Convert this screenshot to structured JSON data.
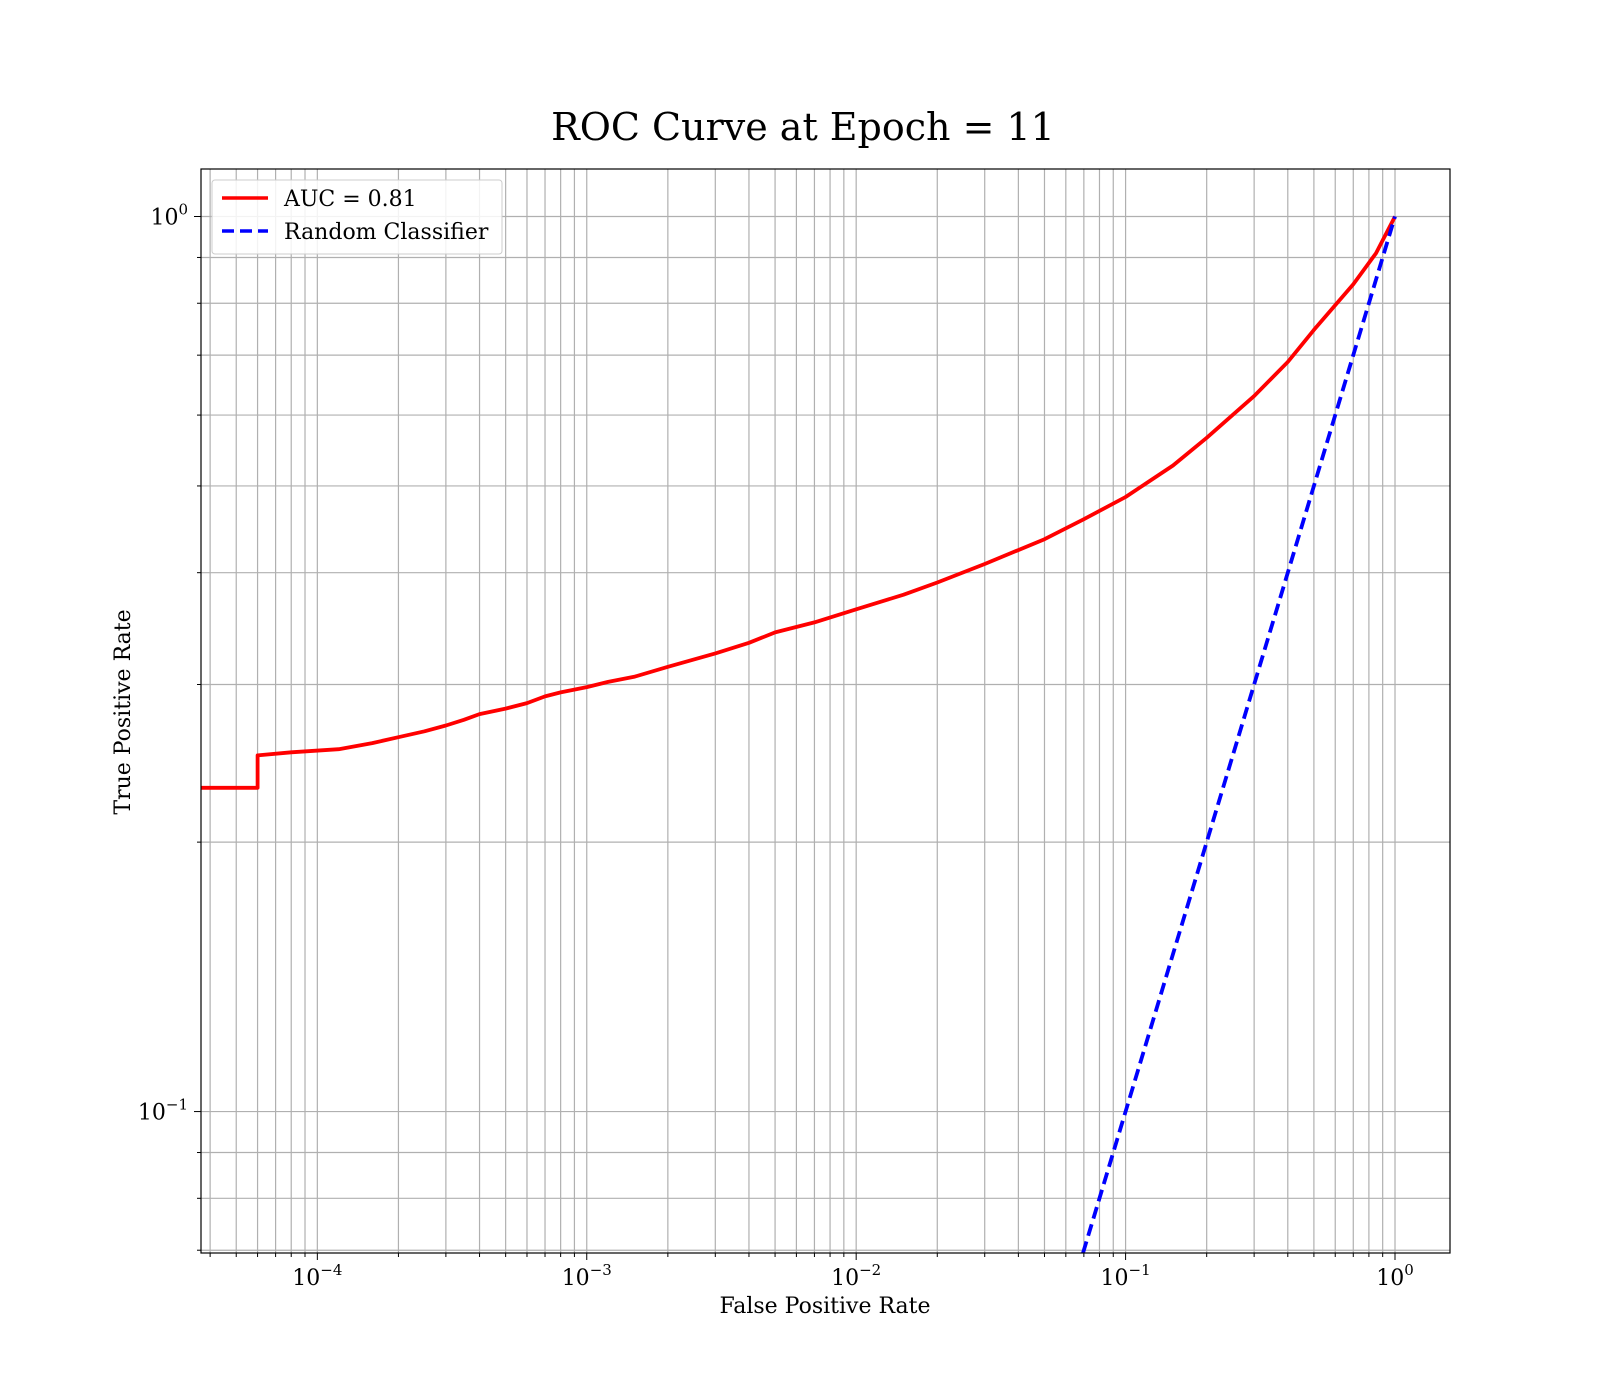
{
  "chart_data": {
    "type": "line",
    "title": "ROC Curve at Epoch = 11",
    "xlabel": "False Positive Rate",
    "ylabel": "True Positive Rate",
    "xscale": "log",
    "yscale": "log",
    "xlim": [
      3.7e-05,
      1.6
    ],
    "ylim": [
      0.0695,
      1.13
    ],
    "grid": "both",
    "legend_position": "top-left",
    "x_ticks": [
      {
        "base": "10",
        "exp": "−4",
        "value": 0.0001
      },
      {
        "base": "10",
        "exp": "−3",
        "value": 0.001
      },
      {
        "base": "10",
        "exp": "−2",
        "value": 0.01
      },
      {
        "base": "10",
        "exp": "−1",
        "value": 0.1
      },
      {
        "base": "10",
        "exp": "0",
        "value": 1
      }
    ],
    "y_ticks": [
      {
        "base": "10",
        "exp": "−1",
        "value": 0.1
      },
      {
        "base": "10",
        "exp": "0",
        "value": 1
      }
    ],
    "series": [
      {
        "name": "AUC = 0.81",
        "color": "#ff0000",
        "style": "solid",
        "x": [
          3.7e-05,
          6e-05,
          6e-05,
          8e-05,
          0.00012,
          0.00016,
          0.0002,
          0.00025,
          0.0003,
          0.00035,
          0.0004,
          0.0005,
          0.0006,
          0.0007,
          0.0008,
          0.001,
          0.0012,
          0.0015,
          0.002,
          0.003,
          0.004,
          0.005,
          0.007,
          0.01,
          0.015,
          0.02,
          0.03,
          0.05,
          0.07,
          0.1,
          0.15,
          0.2,
          0.3,
          0.4,
          0.5,
          0.7,
          0.85,
          1.0
        ],
        "y": [
          0.23,
          0.23,
          0.25,
          0.252,
          0.254,
          0.258,
          0.262,
          0.266,
          0.27,
          0.274,
          0.278,
          0.282,
          0.286,
          0.291,
          0.294,
          0.298,
          0.302,
          0.306,
          0.314,
          0.325,
          0.334,
          0.343,
          0.352,
          0.364,
          0.378,
          0.39,
          0.409,
          0.436,
          0.459,
          0.486,
          0.527,
          0.566,
          0.63,
          0.688,
          0.747,
          0.84,
          0.91,
          1.0
        ]
      },
      {
        "name": "Random Classifier",
        "color": "#0000ff",
        "style": "dashed",
        "x": [
          0.0695,
          1.0
        ],
        "y": [
          0.0695,
          1.0
        ]
      }
    ]
  }
}
